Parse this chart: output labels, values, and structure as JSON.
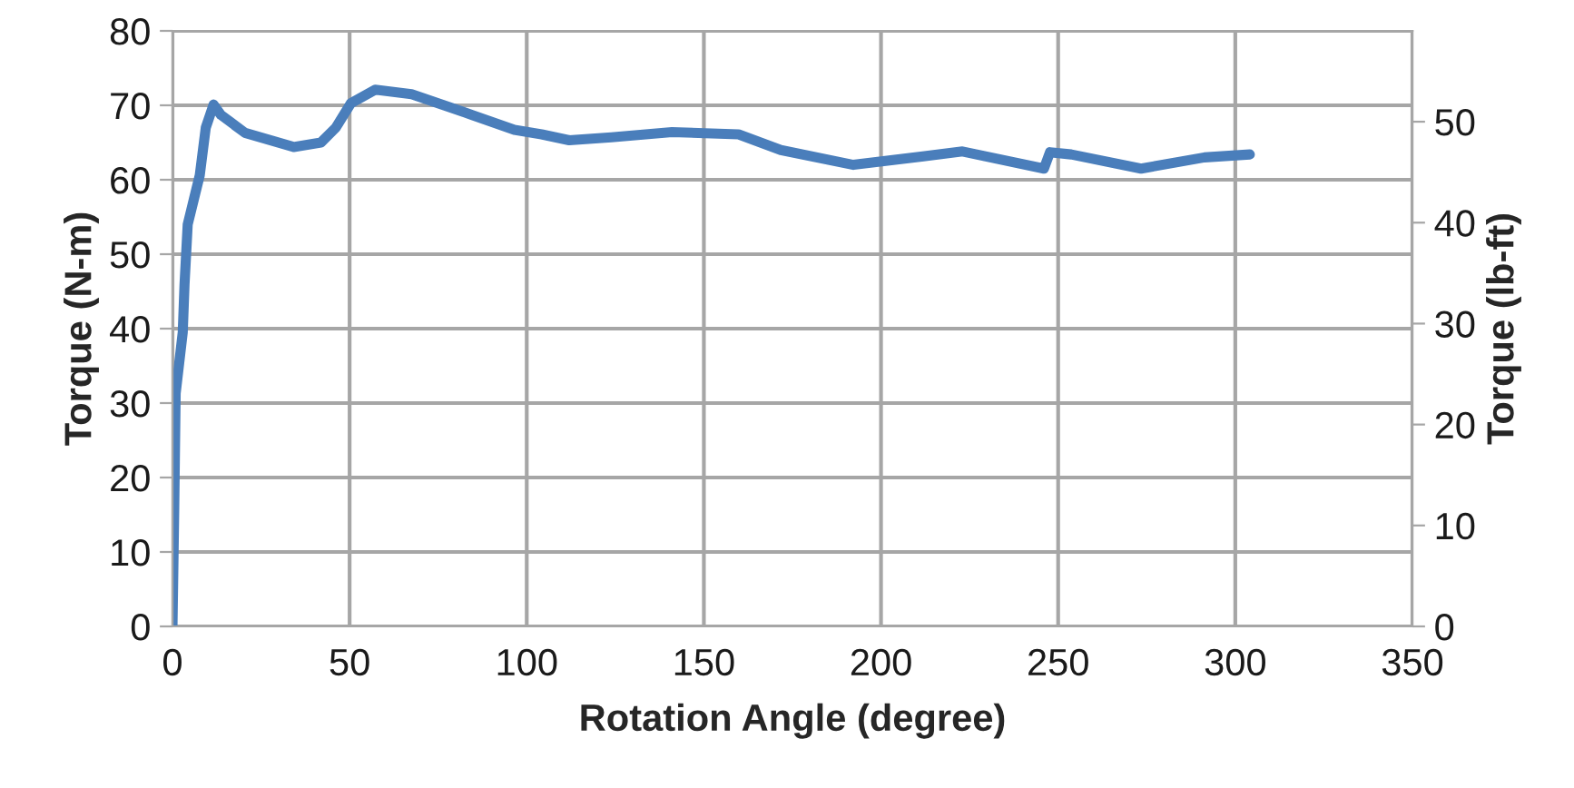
{
  "chart_data": {
    "type": "line",
    "xlabel": "Rotation Angle (degree)",
    "ylabel": "Torque (N-m)",
    "y2label": "Torque (lb-ft)",
    "series": [
      {
        "color": "#4a7ebb",
        "x": [
          0,
          0.5,
          0.9,
          2.9,
          3.4,
          4.3,
          6,
          7.7,
          9.4,
          11.6,
          13.7,
          20.5,
          34.2,
          41.9,
          46.1,
          50.4,
          57.2,
          67.5,
          84.6,
          96.5,
          104.2,
          112,
          123.9,
          141,
          159.8,
          171.7,
          192.2,
          223,
          246,
          247.7,
          253.7,
          273.4,
          291.3,
          304.1
        ],
        "values": [
          0,
          15.8,
          31.3,
          39.5,
          45.9,
          54,
          57.3,
          60.6,
          67,
          70.1,
          68.7,
          66.3,
          64.4,
          65,
          67,
          70.3,
          72.1,
          71.5,
          68.7,
          66.7,
          66.1,
          65.3,
          65.7,
          66.4,
          66.1,
          64,
          62,
          63.8,
          61.5,
          63.7,
          63.4,
          61.5,
          63,
          63.4
        ]
      }
    ],
    "xlim": [
      0,
      350
    ],
    "xticks": [
      0,
      50,
      100,
      150,
      200,
      250,
      300,
      350
    ],
    "ylim": [
      0,
      80
    ],
    "yticks": [
      0,
      10,
      20,
      30,
      40,
      50,
      60,
      70,
      80
    ],
    "y2lim": [
      0,
      59
    ],
    "y2ticks": [
      0,
      10,
      20,
      30,
      40,
      50
    ],
    "grid": true,
    "marker": "none",
    "line_style": "solid"
  }
}
